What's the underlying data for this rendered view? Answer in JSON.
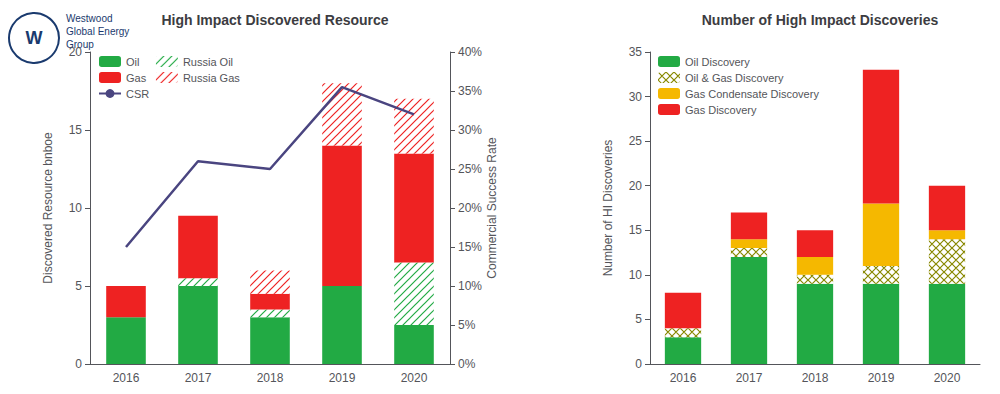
{
  "chart_data": [
    {
      "type": "bar",
      "title": "High Impact Discovered Resource",
      "y_label": "Discovered Resource bnboe",
      "y2_label": "Commercial Success Rate",
      "categories": [
        "2016",
        "2017",
        "2018",
        "2019",
        "2020"
      ],
      "series": [
        {
          "name": "Oil",
          "color": "#22aa44",
          "values": [
            3.0,
            5.0,
            3.0,
            5.0,
            2.5
          ]
        },
        {
          "name": "Russia Oil",
          "color": "#22aa44",
          "values": [
            0.0,
            0.5,
            0.5,
            0.0,
            4.0
          ]
        },
        {
          "name": "Gas",
          "color": "#ee2222",
          "values": [
            2.0,
            4.0,
            1.0,
            9.0,
            7.0
          ]
        },
        {
          "name": "Russia Gas",
          "color": "#ee2222",
          "values": [
            0.0,
            0.0,
            1.5,
            4.0,
            3.5
          ]
        },
        {
          "name": "CSR",
          "type": "line",
          "axis": "y2",
          "color": "#4a4580",
          "values": [
            0.15,
            0.26,
            0.25,
            0.355,
            0.32
          ]
        }
      ],
      "ylim": [
        0,
        20
      ],
      "yticks": [
        0,
        5,
        10,
        15,
        20
      ],
      "y2lim": [
        0,
        0.4
      ],
      "y2ticks": [
        {
          "value": 0,
          "label": "0%"
        },
        {
          "value": 0.05,
          "label": "5%"
        },
        {
          "value": 0.1,
          "label": "10%"
        },
        {
          "value": 0.15,
          "label": "15%"
        },
        {
          "value": 0.2,
          "label": "20%"
        },
        {
          "value": 0.25,
          "label": "25%"
        },
        {
          "value": 0.3,
          "label": "30%"
        },
        {
          "value": 0.35,
          "label": "35%"
        },
        {
          "value": 0.4,
          "label": "40%"
        }
      ],
      "stacked": true,
      "grid": false,
      "legend": "upper left",
      "annotations": [
        "W",
        "Westwood",
        "Global Energy",
        "Group"
      ]
    },
    {
      "type": "bar",
      "title": "Number of High Impact Discoveries",
      "y_label": "Number of HI Discoveries",
      "categories": [
        "2016",
        "2017",
        "2018",
        "2019",
        "2020"
      ],
      "series": [
        {
          "name": "Oil Discovery",
          "color": "#22aa44",
          "values": [
            3.0,
            12.0,
            9.0,
            9.0,
            9.0
          ]
        },
        {
          "name": "Oil & Gas Discovery",
          "color": "#888800",
          "values": [
            1.0,
            1.0,
            1.0,
            2.0,
            5.0
          ]
        },
        {
          "name": "Gas Condensate Discovery",
          "color": "#f5b800",
          "values": [
            0.0,
            1.0,
            2.0,
            7.0,
            1.0
          ]
        },
        {
          "name": "Gas Discovery",
          "color": "#ee2222",
          "values": [
            4.0,
            3.0,
            3.0,
            15.0,
            5.0
          ]
        }
      ],
      "ylim": [
        0,
        35
      ],
      "yticks": [
        0,
        5,
        10,
        15,
        20,
        25,
        30,
        35
      ],
      "stacked": true,
      "grid": false,
      "legend": "upper left"
    }
  ]
}
